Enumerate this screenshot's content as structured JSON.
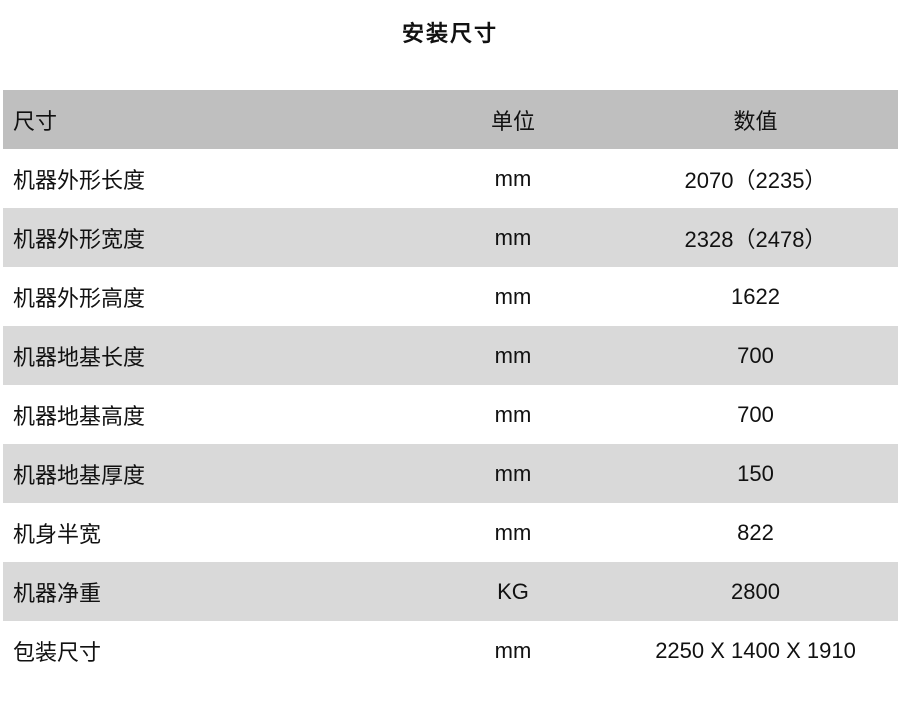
{
  "title": "安装尺寸",
  "headers": [
    "尺寸",
    "单位",
    "数值"
  ],
  "rows": [
    [
      "机器外形长度",
      "mm",
      "2070（2235）"
    ],
    [
      "机器外形宽度",
      "mm",
      "2328（2478）"
    ],
    [
      "机器外形高度",
      "mm",
      "1622"
    ],
    [
      "机器地基长度",
      "mm",
      "700"
    ],
    [
      "机器地基高度",
      "mm",
      "700"
    ],
    [
      "机器地基厚度",
      "mm",
      "150"
    ],
    [
      "机身半宽",
      "mm",
      "822"
    ],
    [
      "机器净重",
      "KG",
      "2800"
    ],
    [
      "包装尺寸",
      "mm",
      "2250 X 1400 X 1910"
    ]
  ],
  "colors": {
    "header_bg": "#bfbfbf",
    "alt_row_bg": "#d9d9d9"
  }
}
